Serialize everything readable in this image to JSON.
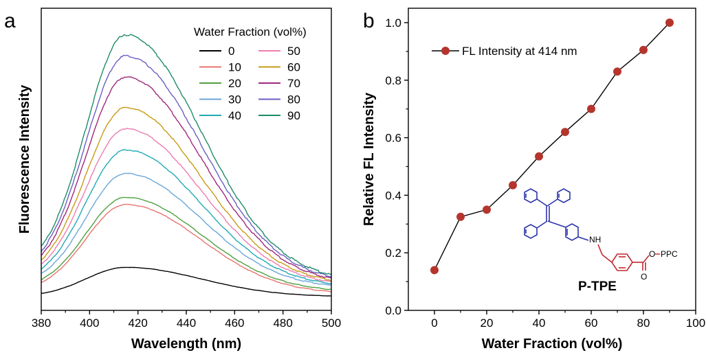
{
  "panel_a": {
    "letter": "a",
    "legend_title": "Water Fraction (vol%)"
  },
  "panel_b": {
    "letter": "b",
    "legend_label": "FL Intensity at 414 nm",
    "molecule": {
      "name": "P-TPE",
      "nh_label": "NH",
      "ester_label": "O",
      "polymer_label": "PPC",
      "carbonyl_label": "O"
    }
  },
  "colors": {
    "axis": "#000000",
    "marker": "#b5352d",
    "molecule_blue": "#2b33a8",
    "molecule_red": "#c1272d",
    "molecule_teal": "#1f8e8e"
  },
  "chart_data": [
    {
      "type": "line",
      "xlabel": "Wavelength (nm)",
      "ylabel": "Fluorescence Intensity",
      "xlim": [
        380,
        500
      ],
      "xticks": [
        380,
        400,
        420,
        440,
        460,
        480,
        500
      ],
      "ylim": [
        0,
        1.0
      ],
      "yticks_labeled": false,
      "grid": false,
      "legend_title": "Water Fraction (vol%)",
      "legend_position": "top-right",
      "series": [
        {
          "name": "0",
          "color": "#000000",
          "peak": 0.118,
          "base_left": 0.0,
          "base_right": 0.0
        },
        {
          "name": "10",
          "color": "#e8736f",
          "peak": 0.36,
          "base_left": 0.02,
          "base_right": 0.012
        },
        {
          "name": "20",
          "color": "#4ea03e",
          "peak": 0.383,
          "base_left": 0.03,
          "base_right": 0.02
        },
        {
          "name": "30",
          "color": "#6aa6d8",
          "peak": 0.47,
          "base_left": 0.045,
          "base_right": 0.035
        },
        {
          "name": "40",
          "color": "#20a9b5",
          "peak": 0.56,
          "base_left": 0.055,
          "base_right": 0.04
        },
        {
          "name": "50",
          "color": "#ec7db0",
          "peak": 0.64,
          "base_left": 0.065,
          "base_right": 0.045
        },
        {
          "name": "60",
          "color": "#c79a15",
          "peak": 0.72,
          "base_left": 0.075,
          "base_right": 0.05
        },
        {
          "name": "70",
          "color": "#a0277a",
          "peak": 0.84,
          "base_left": 0.08,
          "base_right": 0.055
        },
        {
          "name": "80",
          "color": "#6a5fc1",
          "peak": 0.92,
          "base_left": 0.09,
          "base_right": 0.06
        },
        {
          "name": "90",
          "color": "#1f8a6a",
          "peak": 1.0,
          "base_left": 0.1,
          "base_right": 0.065
        }
      ]
    },
    {
      "type": "scatter",
      "xlabel": "Water Fraction (vol%)",
      "ylabel": "Relative FL Intensity",
      "xlim": [
        -10,
        100
      ],
      "ylim": [
        0,
        1.05
      ],
      "xticks": [
        0,
        20,
        40,
        60,
        80,
        100
      ],
      "yticks": [
        0.0,
        0.2,
        0.4,
        0.6,
        0.8,
        1.0
      ],
      "grid": false,
      "legend_position": "top-left",
      "series": [
        {
          "name": "FL Intensity at 414 nm",
          "x": [
            0,
            10,
            20,
            30,
            40,
            50,
            60,
            70,
            80,
            90
          ],
          "y": [
            0.14,
            0.325,
            0.35,
            0.435,
            0.535,
            0.62,
            0.7,
            0.83,
            0.905,
            1.0
          ]
        }
      ]
    }
  ]
}
